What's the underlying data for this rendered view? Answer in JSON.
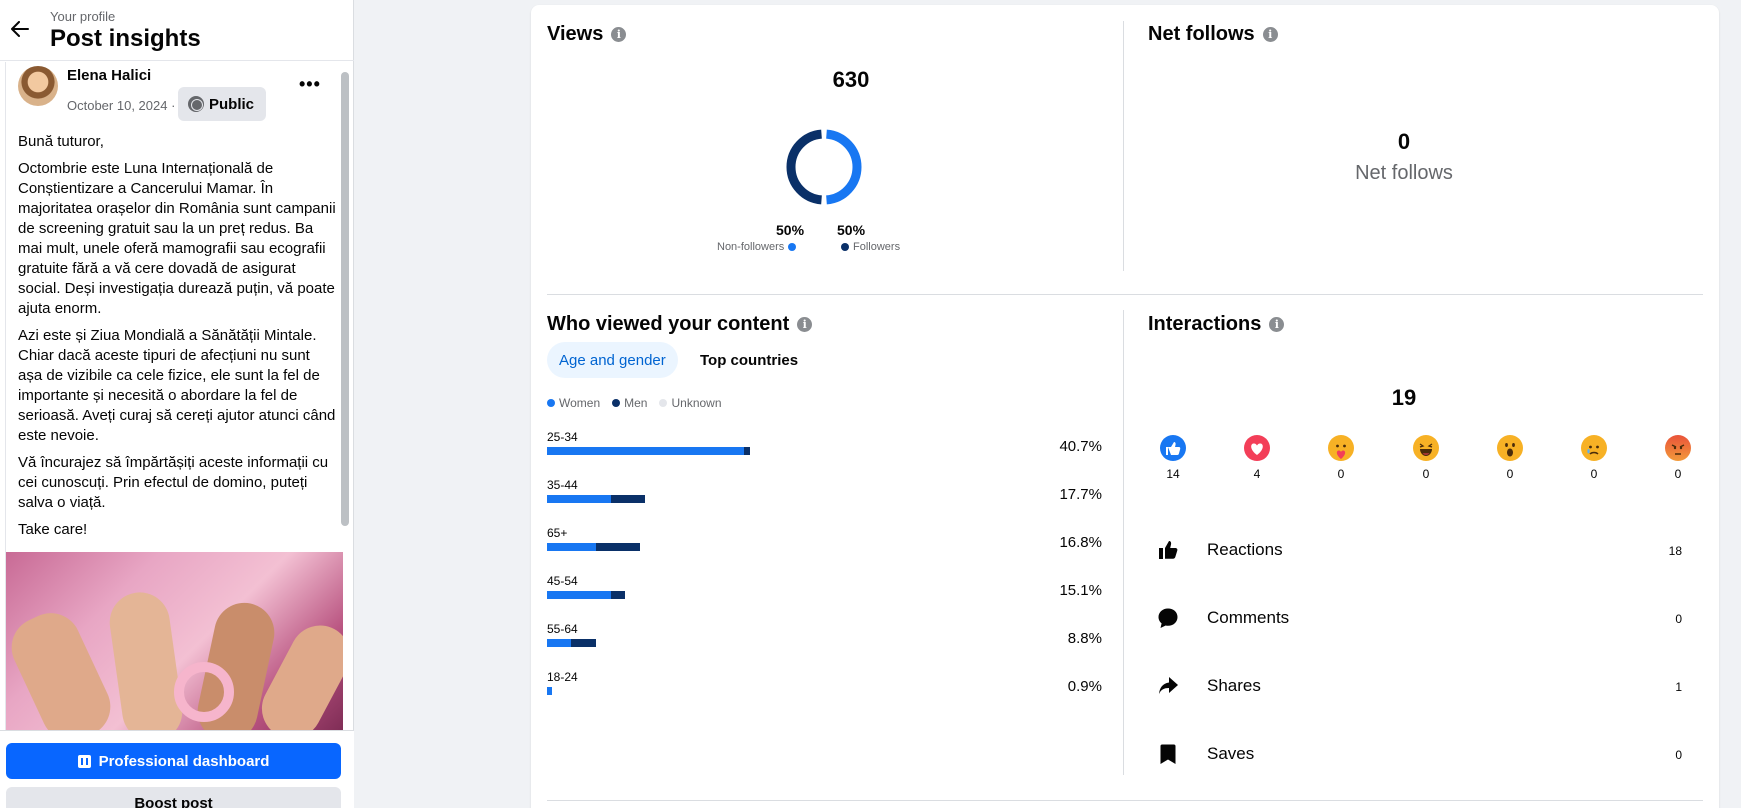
{
  "header": {
    "subtitle": "Your profile",
    "title": "Post insights"
  },
  "post": {
    "author": "Elena Halici",
    "date": "October 10, 2024 ·",
    "privacy": "Public",
    "paragraphs": [
      "Bună tuturor,",
      "Octombrie este Luna Internațională de Conștientizare a Cancerului Mamar. În majoritatea orașelor din România sunt campanii de screening gratuit sau la un preț redus. Ba mai mult, unele oferă mamografii sau ecografii gratuite fără a vă cere dovadă de asigurat social. Deși investigația durează puțin, vă poate ajuta enorm.",
      "Azi este și Ziua Mondială a Sănătății Mintale. Chiar dacă aceste tipuri de afecțiuni nu sunt așa de vizibile ca cele fizice, ele sunt la fel de importante și necesită o abordare la fel de serioasă. Aveți curaj să cereți ajutor atunci când este nevoie.",
      "Vă încurajez să împărtășiți aceste informații cu cei cunoscuți. Prin efectul de domino, puteți salva o viață.",
      "Take care!"
    ]
  },
  "footer": {
    "dashboard_label": "Professional dashboard",
    "boost_label": "Boost post"
  },
  "views": {
    "title": "Views",
    "total": "630",
    "non_followers_pct": "50%",
    "followers_pct": "50%",
    "non_followers_label": "Non-followers",
    "followers_label": "Followers",
    "non_followers_share": 0.5,
    "followers_share": 0.5
  },
  "net_follows": {
    "title": "Net follows",
    "value": "0",
    "label": "Net follows"
  },
  "audience": {
    "title": "Who viewed your content",
    "tabs": [
      "Age and gender",
      "Top countries"
    ],
    "legend": [
      "Women",
      "Men",
      "Unknown"
    ],
    "rows": [
      {
        "label": "25-34",
        "pct": "40.7%",
        "women": 35.5,
        "men": 1.0
      },
      {
        "label": "35-44",
        "pct": "17.7%",
        "women": 11.5,
        "men": 6.2
      },
      {
        "label": "65+",
        "pct": "16.8%",
        "women": 8.8,
        "men": 8.0
      },
      {
        "label": "45-54",
        "pct": "15.1%",
        "women": 11.5,
        "men": 2.6
      },
      {
        "label": "55-64",
        "pct": "8.8%",
        "women": 4.4,
        "men": 4.4
      },
      {
        "label": "18-24",
        "pct": "0.9%",
        "women": 0.9,
        "men": 0
      }
    ]
  },
  "interactions": {
    "title": "Interactions",
    "total": "19",
    "reactions": [
      {
        "name": "like",
        "count": "14"
      },
      {
        "name": "love",
        "count": "4"
      },
      {
        "name": "care",
        "count": "0"
      },
      {
        "name": "haha",
        "count": "0"
      },
      {
        "name": "wow",
        "count": "0"
      },
      {
        "name": "sad",
        "count": "0"
      },
      {
        "name": "angry",
        "count": "0"
      }
    ],
    "metrics": [
      {
        "label": "Reactions",
        "value": "18",
        "icon": "thumbs-up-icon"
      },
      {
        "label": "Comments",
        "value": "0",
        "icon": "comment-icon"
      },
      {
        "label": "Shares",
        "value": "1",
        "icon": "share-icon"
      },
      {
        "label": "Saves",
        "value": "0",
        "icon": "bookmark-icon"
      }
    ]
  },
  "colors": {
    "accent": "#0866ff",
    "women": "#1877f2",
    "men": "#0a3068",
    "unknown": "#e4e6eb"
  }
}
